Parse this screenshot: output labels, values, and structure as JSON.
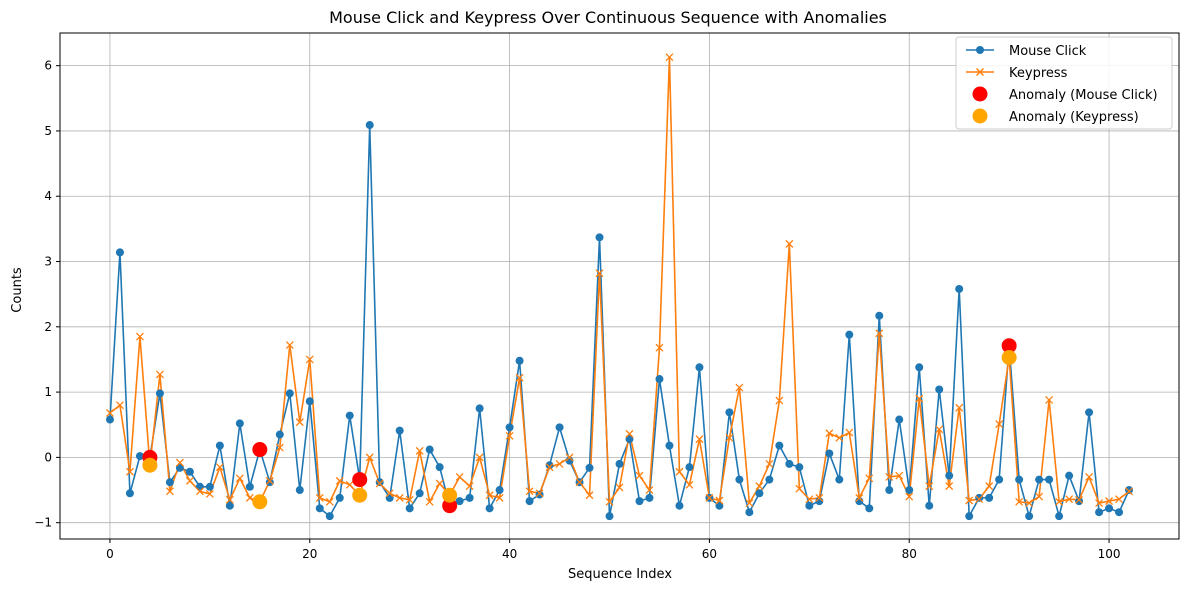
{
  "chart_data": {
    "type": "line",
    "title": "Mouse Click and Keypress Over Continuous Sequence with Anomalies",
    "xlabel": "Sequence Index",
    "ylabel": "Counts",
    "xlim": [
      -5,
      107
    ],
    "ylim": [
      -1.25,
      6.5
    ],
    "xticks": [
      0,
      20,
      40,
      60,
      80,
      100
    ],
    "yticks": [
      -1,
      0,
      1,
      2,
      3,
      4,
      5,
      6
    ],
    "grid": true,
    "legend_position": "top-right",
    "series": [
      {
        "name": "Mouse Click",
        "color": "#1f77b4",
        "marker": "circle",
        "values": [
          0.58,
          3.14,
          -0.55,
          0.02,
          0.0,
          0.98,
          -0.38,
          -0.16,
          -0.22,
          -0.45,
          -0.45,
          0.18,
          -0.74,
          0.52,
          -0.45,
          0.12,
          -0.38,
          0.35,
          0.98,
          -0.5,
          0.86,
          -0.78,
          -0.9,
          -0.62,
          0.64,
          -0.34,
          5.09,
          -0.38,
          -0.62,
          0.41,
          -0.78,
          -0.55,
          0.12,
          -0.15,
          -0.74,
          -0.67,
          -0.62,
          0.75,
          -0.78,
          -0.5,
          0.46,
          1.48,
          -0.67,
          -0.57,
          -0.12,
          0.46,
          -0.05,
          -0.38,
          -0.16,
          3.37,
          -0.9,
          -0.1,
          0.28,
          -0.67,
          -0.62,
          1.2,
          0.18,
          -0.74,
          -0.15,
          1.38,
          -0.62,
          -0.74,
          0.69,
          -0.34,
          -0.84,
          -0.55,
          -0.34,
          0.18,
          -0.1,
          -0.15,
          -0.74,
          -0.67,
          0.06,
          -0.34,
          1.88,
          -0.67,
          -0.78,
          2.17,
          -0.5,
          0.58,
          -0.5,
          1.38,
          -0.74,
          1.04,
          -0.28,
          2.58,
          -0.9,
          -0.62,
          -0.62,
          -0.34,
          1.71,
          -0.34,
          -0.9,
          -0.34,
          -0.34,
          -0.9,
          -0.28,
          -0.67,
          0.69,
          -0.84,
          -0.78,
          -0.84,
          -0.5
        ]
      },
      {
        "name": "Keypress",
        "color": "#ff7f0e",
        "marker": "x",
        "values": [
          0.68,
          0.8,
          -0.22,
          1.85,
          -0.12,
          1.27,
          -0.52,
          -0.08,
          -0.36,
          -0.52,
          -0.56,
          -0.15,
          -0.65,
          -0.32,
          -0.62,
          -0.68,
          -0.36,
          0.15,
          1.72,
          0.54,
          1.5,
          -0.62,
          -0.68,
          -0.36,
          -0.42,
          -0.58,
          0.0,
          -0.4,
          -0.55,
          -0.62,
          -0.65,
          0.1,
          -0.68,
          -0.4,
          -0.58,
          -0.3,
          -0.44,
          0.0,
          -0.58,
          -0.62,
          0.33,
          1.22,
          -0.52,
          -0.55,
          -0.15,
          -0.1,
          0.0,
          -0.38,
          -0.58,
          2.82,
          -0.68,
          -0.46,
          0.36,
          -0.28,
          -0.5,
          1.68,
          6.13,
          -0.22,
          -0.42,
          0.28,
          -0.62,
          -0.66,
          0.3,
          1.07,
          -0.7,
          -0.44,
          -0.1,
          0.87,
          3.27,
          -0.48,
          -0.64,
          -0.62,
          0.37,
          0.3,
          0.38,
          -0.62,
          -0.32,
          1.9,
          -0.3,
          -0.28,
          -0.6,
          0.9,
          -0.44,
          0.43,
          -0.44,
          0.76,
          -0.66,
          -0.64,
          -0.44,
          0.51,
          1.53,
          -0.68,
          -0.7,
          -0.6,
          0.88,
          -0.68,
          -0.64,
          -0.65,
          -0.3,
          -0.7,
          -0.67,
          -0.64,
          -0.52
        ]
      }
    ],
    "anomalies": [
      {
        "name": "Anomaly (Mouse Click)",
        "color": "#ff0000",
        "points": [
          [
            4,
            0.0
          ],
          [
            15,
            0.12
          ],
          [
            25,
            -0.34
          ],
          [
            34,
            -0.74
          ],
          [
            90,
            1.71
          ]
        ]
      },
      {
        "name": "Anomaly (Keypress)",
        "color": "#ffa500",
        "points": [
          [
            4,
            -0.12
          ],
          [
            15,
            -0.68
          ],
          [
            25,
            -0.58
          ],
          [
            34,
            -0.58
          ],
          [
            90,
            1.53
          ]
        ]
      }
    ]
  }
}
